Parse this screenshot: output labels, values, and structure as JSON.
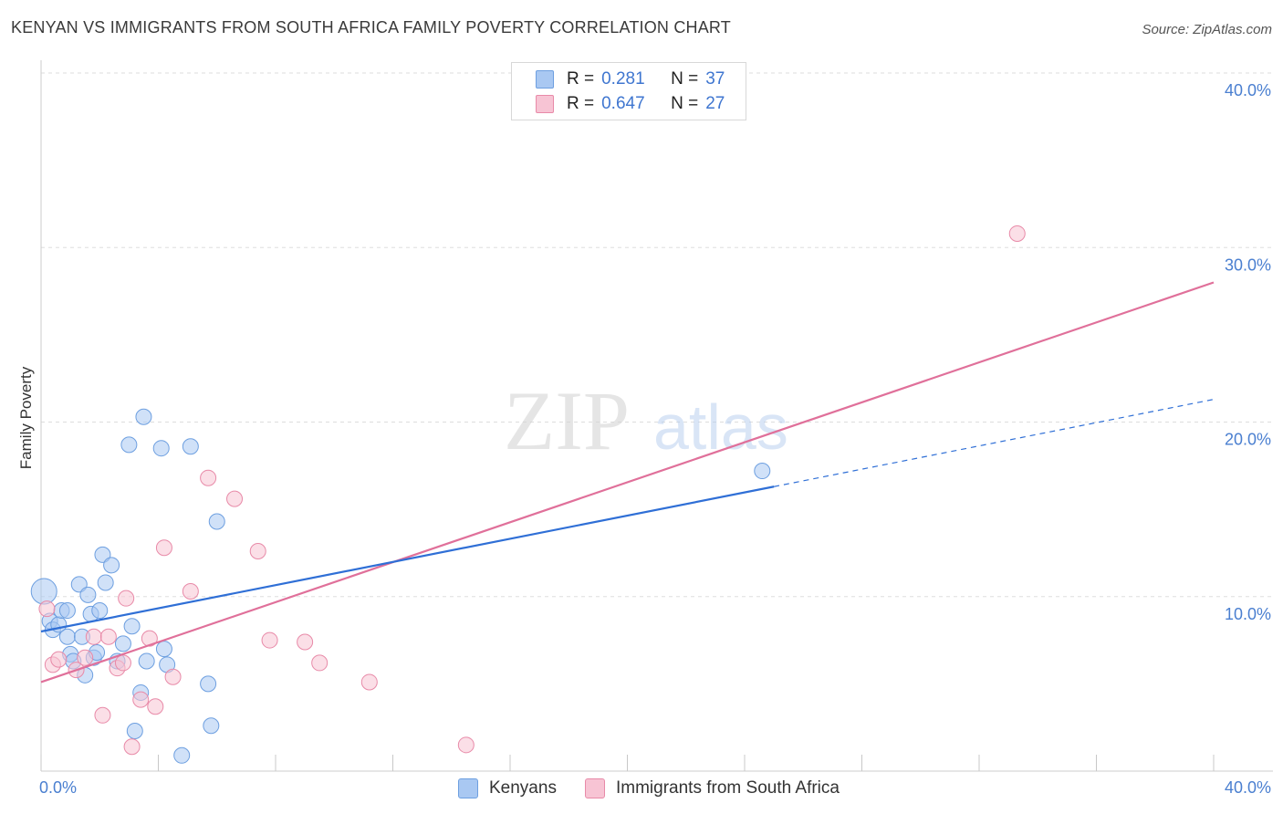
{
  "title": "KENYAN VS IMMIGRANTS FROM SOUTH AFRICA FAMILY POVERTY CORRELATION CHART",
  "source": "Source: ZipAtlas.com",
  "watermark": {
    "zip": "ZIP",
    "atlas": "atlas"
  },
  "legend": {
    "rows": [
      {
        "r_label": "R =",
        "r_value": "0.281",
        "n_label": "N =",
        "n_value": "37",
        "color": "#a9c8f2",
        "border": "#6d9fe0"
      },
      {
        "r_label": "R =",
        "r_value": "0.647",
        "n_label": "N =",
        "n_value": "27",
        "color": "#f7c4d4",
        "border": "#e88aa8"
      }
    ]
  },
  "bottom_legend": {
    "series1": "Kenyans",
    "series2": "Immigrants from South Africa"
  },
  "chart_data": {
    "type": "scatter",
    "title": "KENYAN VS IMMIGRANTS FROM SOUTH AFRICA FAMILY POVERTY CORRELATION CHART",
    "xlabel": "",
    "ylabel": "Family Poverty",
    "xlim": [
      0,
      40
    ],
    "ylim": [
      0,
      40
    ],
    "x_tick_labels": [
      "0.0%",
      "40.0%"
    ],
    "y_ticks": [
      {
        "value": 10,
        "label": "10.0%"
      },
      {
        "value": 20,
        "label": "20.0%"
      },
      {
        "value": 30,
        "label": "30.0%"
      },
      {
        "value": 40,
        "label": "40.0%"
      }
    ],
    "series": [
      {
        "name": "Kenyans",
        "color": "#a9c8f2",
        "stroke": "#6d9fe0",
        "line_color": "#2f6fd6",
        "trend": {
          "x0": 0,
          "y0": 8.0,
          "x1": 25,
          "y1": 16.3,
          "dash_to_x": 40,
          "dash_to_y": 21.3
        },
        "points": [
          [
            0.1,
            10.3
          ],
          [
            0.3,
            8.6
          ],
          [
            0.4,
            8.1
          ],
          [
            0.6,
            8.4
          ],
          [
            0.7,
            9.2
          ],
          [
            0.9,
            7.7
          ],
          [
            1.0,
            6.7
          ],
          [
            1.1,
            6.3
          ],
          [
            1.3,
            10.7
          ],
          [
            1.4,
            7.7
          ],
          [
            1.5,
            5.5
          ],
          [
            1.6,
            10.1
          ],
          [
            1.7,
            9.0
          ],
          [
            1.8,
            6.5
          ],
          [
            1.9,
            6.8
          ],
          [
            2.0,
            9.2
          ],
          [
            2.1,
            12.4
          ],
          [
            2.2,
            10.8
          ],
          [
            2.4,
            11.8
          ],
          [
            2.6,
            6.3
          ],
          [
            2.8,
            7.3
          ],
          [
            3.0,
            18.7
          ],
          [
            3.1,
            8.3
          ],
          [
            3.2,
            2.3
          ],
          [
            3.4,
            4.5
          ],
          [
            3.5,
            20.3
          ],
          [
            3.6,
            6.3
          ],
          [
            4.1,
            18.5
          ],
          [
            4.2,
            7.0
          ],
          [
            4.3,
            6.1
          ],
          [
            4.8,
            0.9
          ],
          [
            5.1,
            18.6
          ],
          [
            5.7,
            5.0
          ],
          [
            5.8,
            2.6
          ],
          [
            6.0,
            14.3
          ],
          [
            24.6,
            17.2
          ],
          [
            0.9,
            9.2
          ]
        ]
      },
      {
        "name": "Immigrants from South Africa",
        "color": "#f7c4d4",
        "stroke": "#e88aa8",
        "line_color": "#e0709a",
        "trend": {
          "x0": 0,
          "y0": 5.1,
          "x1": 40,
          "y1": 28.0
        },
        "points": [
          [
            0.2,
            9.3
          ],
          [
            0.4,
            6.1
          ],
          [
            0.6,
            6.4
          ],
          [
            1.2,
            5.8
          ],
          [
            1.5,
            6.5
          ],
          [
            1.8,
            7.7
          ],
          [
            2.1,
            3.2
          ],
          [
            2.3,
            7.7
          ],
          [
            2.6,
            5.9
          ],
          [
            2.9,
            9.9
          ],
          [
            3.1,
            1.4
          ],
          [
            3.4,
            4.1
          ],
          [
            3.7,
            7.6
          ],
          [
            3.9,
            3.7
          ],
          [
            4.2,
            12.8
          ],
          [
            4.5,
            5.4
          ],
          [
            5.1,
            10.3
          ],
          [
            5.7,
            16.8
          ],
          [
            6.6,
            15.6
          ],
          [
            7.4,
            12.6
          ],
          [
            7.8,
            7.5
          ],
          [
            9.0,
            7.4
          ],
          [
            9.5,
            6.2
          ],
          [
            11.2,
            5.1
          ],
          [
            14.5,
            1.5
          ],
          [
            33.3,
            30.8
          ],
          [
            2.8,
            6.2
          ]
        ]
      }
    ]
  }
}
